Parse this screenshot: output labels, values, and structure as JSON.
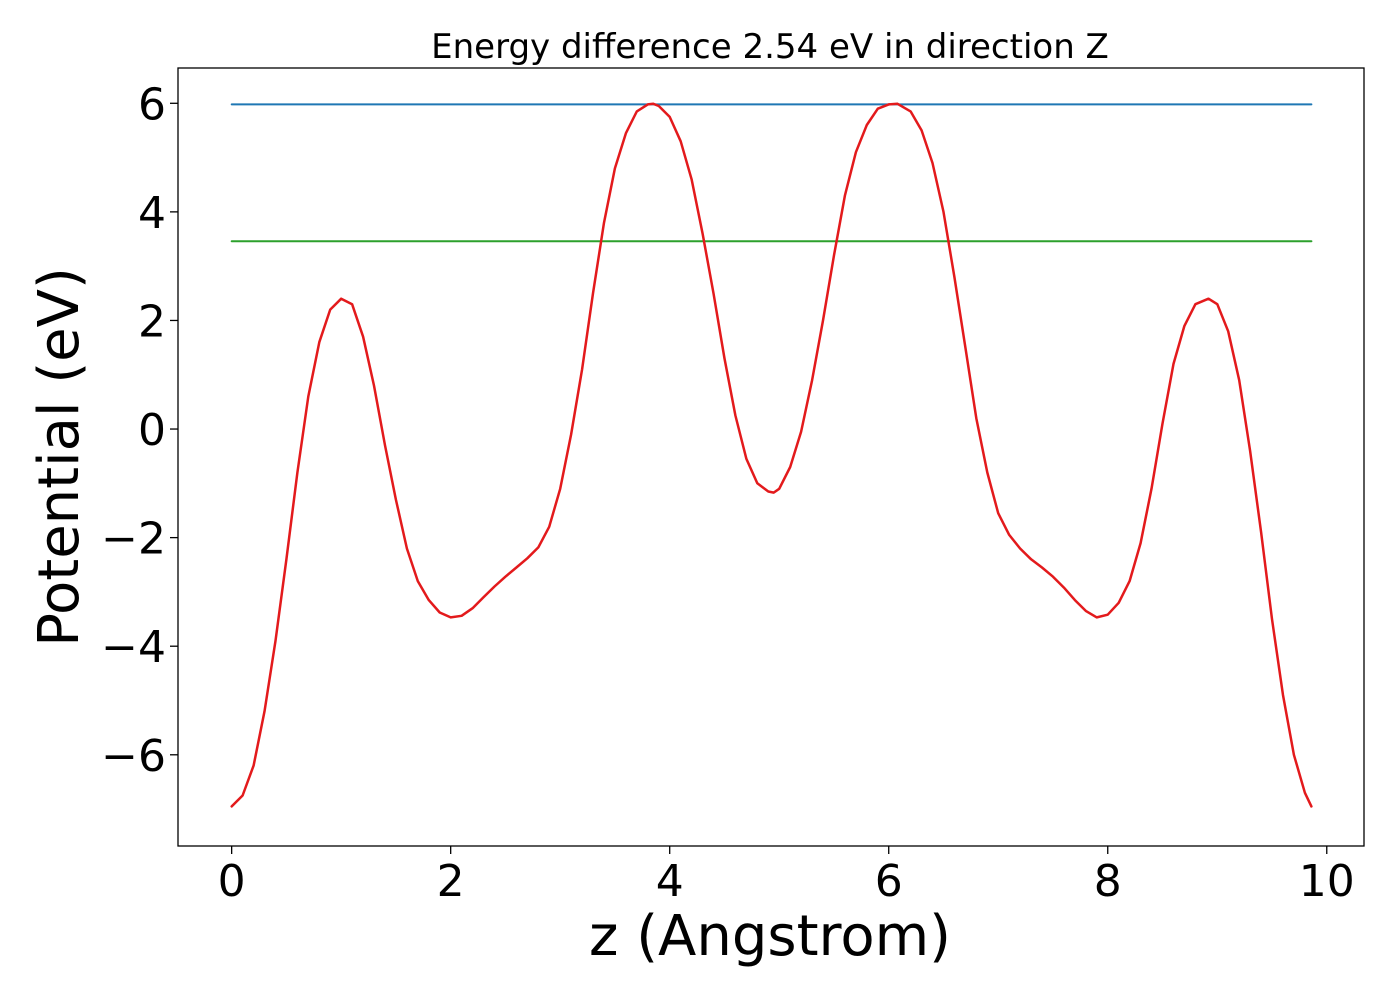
{
  "chart_data": {
    "type": "line",
    "title": "Energy difference 2.54 eV in direction Z",
    "xlabel": "z (Angstrom)",
    "ylabel": "Potential (eV)",
    "xlim": [
      -0.49,
      10.34
    ],
    "ylim": [
      -7.68,
      6.65
    ],
    "xticks": [
      {
        "value": 0,
        "label": "0"
      },
      {
        "value": 2,
        "label": "2"
      },
      {
        "value": 4,
        "label": "4"
      },
      {
        "value": 6,
        "label": "6"
      },
      {
        "value": 8,
        "label": "8"
      },
      {
        "value": 10,
        "label": "10"
      }
    ],
    "yticks": [
      {
        "value": -6,
        "label": "−6"
      },
      {
        "value": -4,
        "label": "−4"
      },
      {
        "value": -2,
        "label": "−2"
      },
      {
        "value": 0,
        "label": "0"
      },
      {
        "value": 2,
        "label": "2"
      },
      {
        "value": 4,
        "label": "4"
      },
      {
        "value": 6,
        "label": "6"
      }
    ],
    "grid": false,
    "series": [
      {
        "color": "#1f77b4",
        "x": [
          0,
          9.86
        ],
        "y": [
          5.98,
          5.98
        ]
      },
      {
        "color": "#2ca02c",
        "x": [
          0,
          9.86
        ],
        "y": [
          3.46,
          3.46
        ]
      },
      {
        "color": "#e31a1c",
        "x": [
          0,
          0.1,
          0.2,
          0.3,
          0.4,
          0.5,
          0.6,
          0.7,
          0.8,
          0.9,
          1.0,
          1.1,
          1.2,
          1.3,
          1.4,
          1.5,
          1.6,
          1.7,
          1.8,
          1.9,
          2.0,
          2.1,
          2.2,
          2.3,
          2.4,
          2.5,
          2.6,
          2.7,
          2.8,
          2.9,
          3.0,
          3.1,
          3.2,
          3.3,
          3.4,
          3.5,
          3.6,
          3.7,
          3.8,
          3.85,
          3.9,
          4.0,
          4.1,
          4.2,
          4.3,
          4.4,
          4.5,
          4.6,
          4.7,
          4.8,
          4.9,
          4.95,
          5.0,
          5.1,
          5.2,
          5.3,
          5.4,
          5.5,
          5.6,
          5.7,
          5.8,
          5.9,
          6.0,
          6.08,
          6.2,
          6.3,
          6.4,
          6.5,
          6.6,
          6.7,
          6.8,
          6.9,
          7.0,
          7.1,
          7.2,
          7.3,
          7.4,
          7.5,
          7.6,
          7.7,
          7.8,
          7.9,
          8.0,
          8.1,
          8.2,
          8.3,
          8.4,
          8.5,
          8.6,
          8.7,
          8.8,
          8.92,
          9.0,
          9.1,
          9.2,
          9.3,
          9.4,
          9.5,
          9.6,
          9.7,
          9.8,
          9.86
        ],
        "y": [
          -6.95,
          -6.75,
          -6.2,
          -5.2,
          -3.9,
          -2.4,
          -0.8,
          0.6,
          1.6,
          2.2,
          2.4,
          2.3,
          1.7,
          0.8,
          -0.3,
          -1.3,
          -2.2,
          -2.8,
          -3.15,
          -3.38,
          -3.47,
          -3.44,
          -3.3,
          -3.1,
          -2.9,
          -2.72,
          -2.55,
          -2.38,
          -2.18,
          -1.8,
          -1.1,
          -0.1,
          1.1,
          2.5,
          3.8,
          4.8,
          5.45,
          5.85,
          5.98,
          5.99,
          5.95,
          5.75,
          5.3,
          4.6,
          3.6,
          2.5,
          1.3,
          0.25,
          -0.55,
          -1.0,
          -1.15,
          -1.17,
          -1.1,
          -0.7,
          -0.05,
          0.9,
          2.0,
          3.2,
          4.3,
          5.1,
          5.6,
          5.9,
          5.98,
          5.99,
          5.85,
          5.5,
          4.9,
          4.0,
          2.8,
          1.5,
          0.2,
          -0.8,
          -1.55,
          -1.95,
          -2.2,
          -2.4,
          -2.55,
          -2.72,
          -2.92,
          -3.15,
          -3.35,
          -3.47,
          -3.42,
          -3.2,
          -2.8,
          -2.1,
          -1.1,
          0.1,
          1.2,
          1.9,
          2.3,
          2.4,
          2.3,
          1.8,
          0.9,
          -0.4,
          -1.9,
          -3.5,
          -4.9,
          -6.0,
          -6.7,
          -6.95
        ]
      }
    ]
  }
}
